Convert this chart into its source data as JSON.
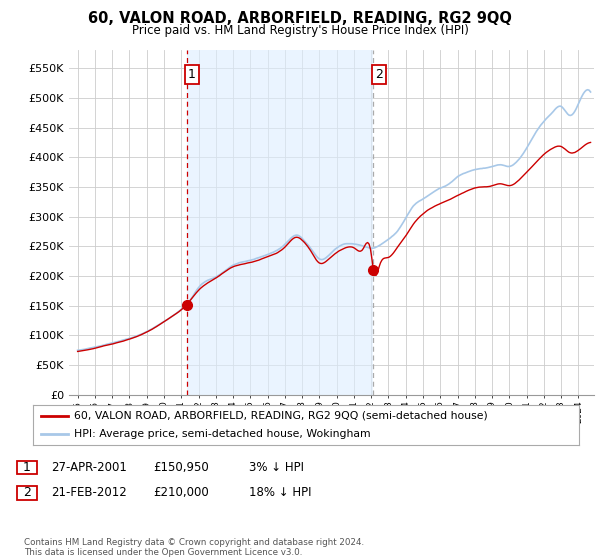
{
  "title": "60, VALON ROAD, ARBORFIELD, READING, RG2 9QQ",
  "subtitle": "Price paid vs. HM Land Registry's House Price Index (HPI)",
  "legend_line1": "60, VALON ROAD, ARBORFIELD, READING, RG2 9QQ (semi-detached house)",
  "legend_line2": "HPI: Average price, semi-detached house, Wokingham",
  "transaction1_date": "27-APR-2001",
  "transaction1_price": "£150,950",
  "transaction1_hpi": "3% ↓ HPI",
  "transaction2_date": "21-FEB-2012",
  "transaction2_price": "£210,000",
  "transaction2_hpi": "18% ↓ HPI",
  "copyright": "Contains HM Land Registry data © Crown copyright and database right 2024.\nThis data is licensed under the Open Government Licence v3.0.",
  "hpi_color": "#a8c8e8",
  "price_color": "#cc0000",
  "vline1_color": "#cc0000",
  "vline2_color": "#aaaaaa",
  "shade_color": "#ddeeff",
  "ylim_min": 0,
  "ylim_max": 580000,
  "yticks": [
    0,
    50000,
    100000,
    150000,
    200000,
    250000,
    300000,
    350000,
    400000,
    450000,
    500000,
    550000
  ],
  "background_color": "#ffffff",
  "grid_color": "#cccccc",
  "sale1_x": 2001.32,
  "sale1_y": 150950,
  "sale2_x": 2012.13,
  "sale2_y": 210000,
  "vline1_x": 2001.32,
  "vline2_x": 2012.13,
  "xlim_min": 1994.5,
  "xlim_max": 2024.9
}
